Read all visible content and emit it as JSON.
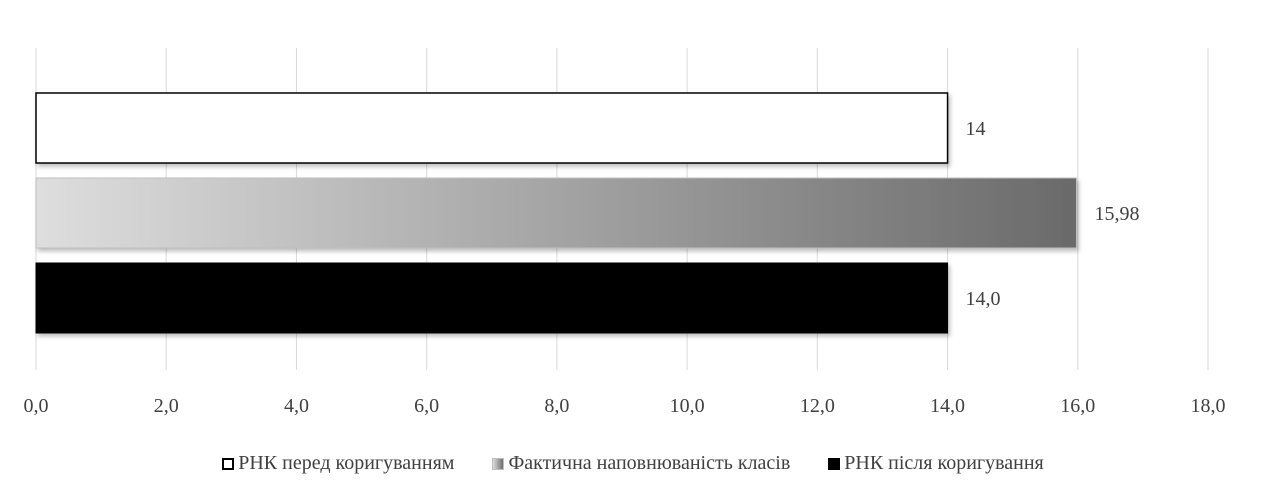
{
  "chart_data": {
    "type": "bar",
    "orientation": "horizontal",
    "title": "",
    "xlabel": "",
    "ylabel": "",
    "xlim": [
      0,
      18
    ],
    "x_ticks": [
      "0,0",
      "2,0",
      "4,0",
      "6,0",
      "8,0",
      "10,0",
      "12,0",
      "14,0",
      "16,0",
      "18,0"
    ],
    "grid": "vertical",
    "legend_position": "bottom",
    "series": [
      {
        "name": "РНК перед коригуванням",
        "value": 14,
        "label": "14",
        "fill": "#ffffff",
        "stroke": "#000000"
      },
      {
        "name": "Фактична наповнюваність класів",
        "value": 15.98,
        "label": "15,98",
        "fill": "gradient #dcdcdc→#6e6e6e",
        "stroke": "#bfbfbf"
      },
      {
        "name": "РНК після коригування",
        "value": 14.0,
        "label": "14,0",
        "fill": "#000000",
        "stroke": "#000000"
      }
    ]
  }
}
